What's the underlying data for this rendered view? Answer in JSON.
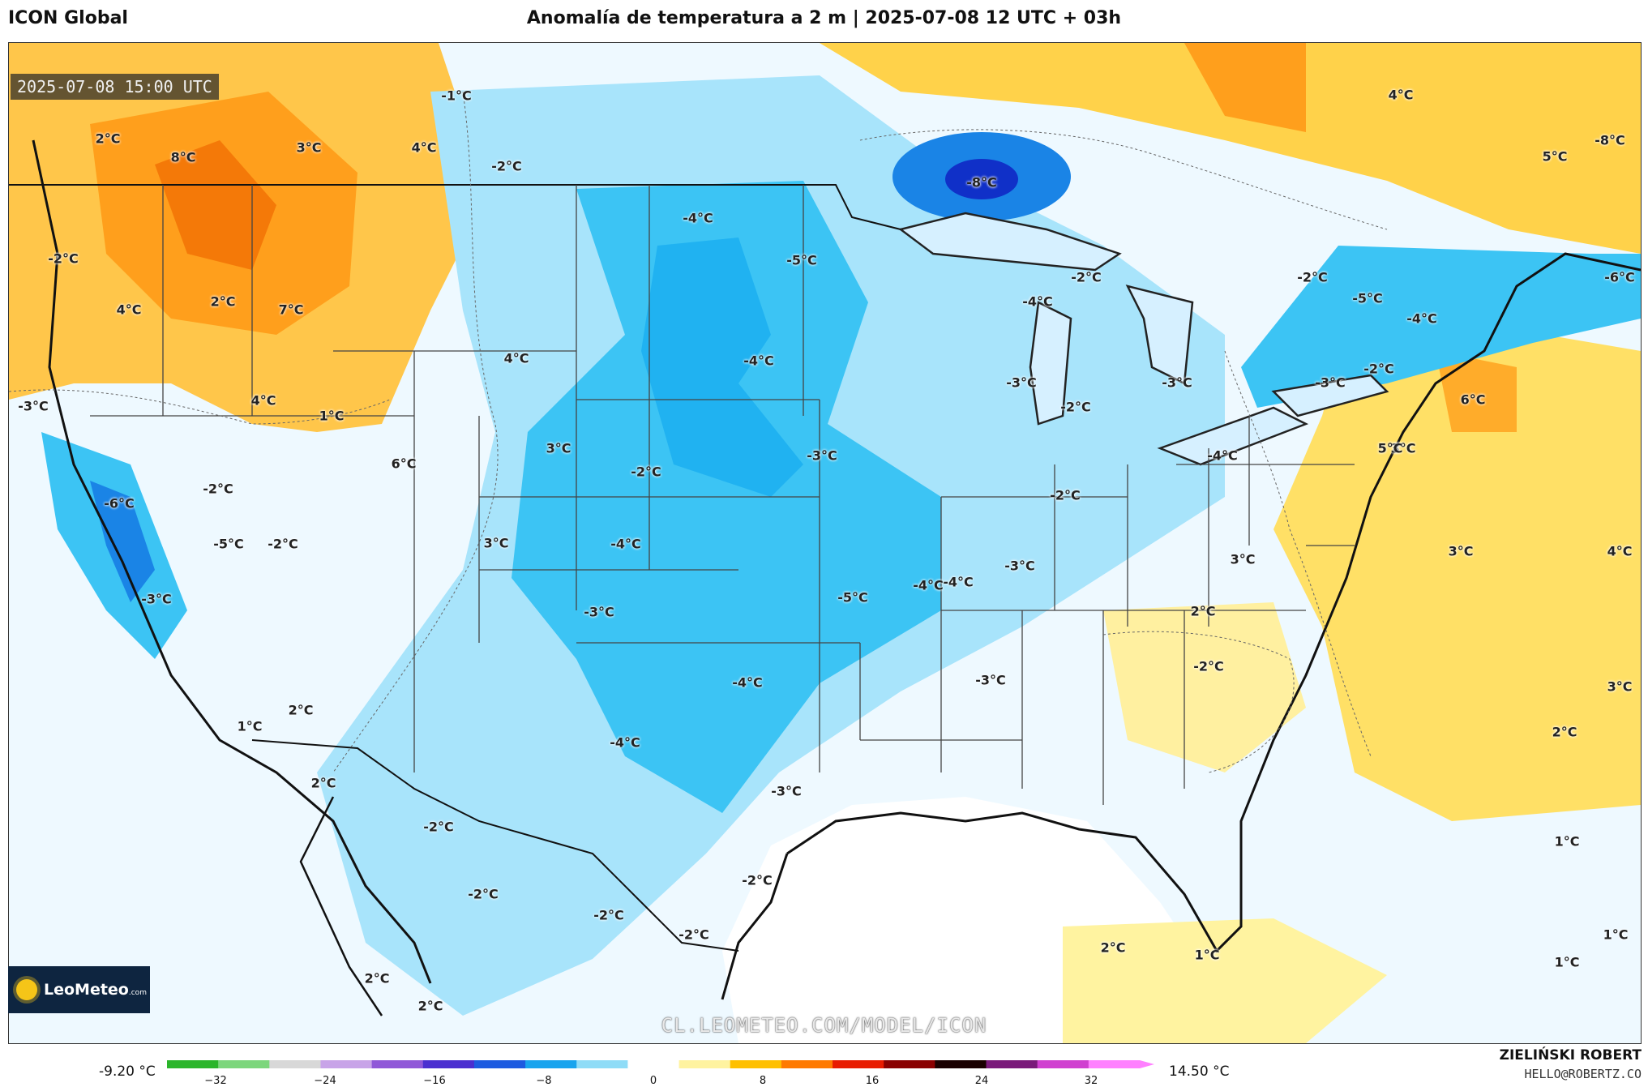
{
  "header": {
    "model": "ICON Global",
    "title": "Anomalía de temperatura a 2 m | 2025-07-08 12 UTC + 03h"
  },
  "map": {
    "timestamp": "2025-07-08 15:00 UTC",
    "watermark": "CL.LEOMETEO.COM/MODEL/ICON",
    "labels": [
      "-1°C",
      "-2°C",
      "4°C",
      "2°C",
      "8°C",
      "3°C",
      "-4°C",
      "-5°C",
      "-8°C",
      "4°C",
      "5°C",
      "-8°C",
      "-2°C",
      "-2°C",
      "-4°C",
      "-2°C",
      "-6°C",
      "4°C",
      "2°C",
      "7°C",
      "4°C",
      "-4°C",
      "-4°C",
      "-3°C",
      "-3°C",
      "-2°C",
      "-3°C",
      "-3°C",
      "6°C",
      "4°C",
      "1°C",
      "-5°C",
      "-2°C",
      "6°C",
      "3°C",
      "-3°C",
      "-4°C",
      "3°C",
      "-2°C",
      "-2°C",
      "-2°C",
      "-5°C",
      "-2°C",
      "-6°C",
      "-4°C",
      "-3°C",
      "-4°C",
      "5°C",
      "3°C",
      "3°C",
      "4°C",
      "-3°C",
      "3°C",
      "-4°C",
      "-3°C",
      "-5°C",
      "2°C",
      "-3°C",
      "-2°C",
      "3°C",
      "2°C",
      "1°C",
      "2°C",
      "-4°C",
      "-4°C",
      "-2°C",
      "-3°C",
      "2°C",
      "-2°C",
      "-2°C",
      "-2°C",
      "-2°C",
      "1°C",
      "2°C",
      "2°C",
      "1°C",
      "2°C",
      "1°C",
      "1°C"
    ]
  },
  "logo": {
    "name": "LeoMeteo",
    "suffix": ".com"
  },
  "legend": {
    "min_label": "-9.20 °C",
    "max_label": "14.50 °C",
    "ticks": [
      "−32",
      "−24",
      "−16",
      "−8",
      "0",
      "8",
      "16",
      "24",
      "32"
    ],
    "colors": [
      "#2bb52b",
      "#7cd67c",
      "#d8d8d8",
      "#c8a4e8",
      "#9058d8",
      "#4b2fd0",
      "#1d5be0",
      "#18a4ee",
      "#8fdcf7",
      "#ffffff",
      "#fff3a0",
      "#ffc000",
      "#ff7a00",
      "#e81c00",
      "#8a0000",
      "#1a0000",
      "#7a1a7a",
      "#d040d0",
      "#ff80ff"
    ]
  },
  "credits": {
    "author": "ZIELIŃSKI ROBERT",
    "email": "HELLO@ROBERTZ.CO"
  }
}
